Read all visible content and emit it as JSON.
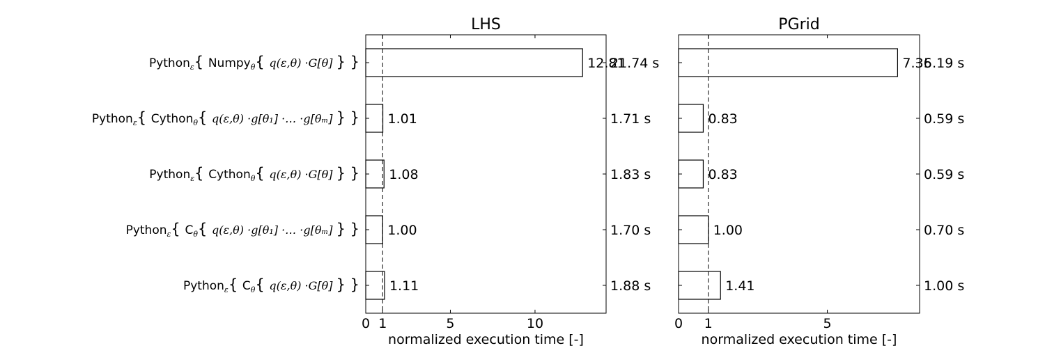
{
  "chart_data": [
    {
      "type": "bar",
      "orientation": "horizontal",
      "title": "LHS",
      "xlabel": "normalized execution time [-]",
      "xlim": [
        0,
        14.2
      ],
      "xticks": [
        0,
        1,
        5,
        10
      ],
      "reference_line": 1,
      "categories": [
        "Python_ε{ Numpy_θ{ q(ε,θ) ·G[θ] } }",
        "Python_ε{ Cython_θ{ q(ε,θ) ·g[θ_1] ·… ·g[θ_m] } }",
        "Python_ε{ Cython_θ{ q(ε,θ) ·G[θ] } }",
        "Python_ε{ C_θ{ q(ε,θ) ·g[θ_1] ·… ·g[θ_m] } }",
        "Python_ε{ C_θ{ q(ε,θ) ·G[θ] } }"
      ],
      "values": [
        12.81,
        1.01,
        1.08,
        1.0,
        1.11
      ],
      "value_labels": [
        "12.81",
        "1.01",
        "1.08",
        "1.00",
        "1.11"
      ],
      "time_labels": [
        "21.74 s",
        "1.71 s",
        "1.83 s",
        "1.70 s",
        "1.88 s"
      ]
    },
    {
      "type": "bar",
      "orientation": "horizontal",
      "title": "PGrid",
      "xlabel": "normalized execution time [-]",
      "xlim": [
        0,
        8.1
      ],
      "xticks": [
        0,
        1,
        5
      ],
      "reference_line": 1,
      "values": [
        7.36,
        0.83,
        0.83,
        1.0,
        1.41
      ],
      "value_labels": [
        "7.36",
        "0.83",
        "0.83",
        "1.00",
        "1.41"
      ],
      "time_labels": [
        "5.19 s",
        "0.59 s",
        "0.59 s",
        "0.70 s",
        "1.00 s"
      ]
    }
  ],
  "category_labels": [
    {
      "pre": "Python",
      "outer_sub": "ε",
      "inner": "Numpy",
      "inner_sub": "θ",
      "body": "q(ε,θ) ·G[θ]"
    },
    {
      "pre": "Python",
      "outer_sub": "ε",
      "inner": "Cython",
      "inner_sub": "θ",
      "body": "q(ε,θ) ·g[θ₁] ·… ·g[θₘ]"
    },
    {
      "pre": "Python",
      "outer_sub": "ε",
      "inner": "Cython",
      "inner_sub": "θ",
      "body": "q(ε,θ) ·G[θ]"
    },
    {
      "pre": "Python",
      "outer_sub": "ε",
      "inner": "C",
      "inner_sub": "θ",
      "body": "q(ε,θ) ·g[θ₁] ·… ·g[θₘ]"
    },
    {
      "pre": "Python",
      "outer_sub": "ε",
      "inner": "C",
      "inner_sub": "θ",
      "body": "q(ε,θ) ·G[θ]"
    }
  ]
}
